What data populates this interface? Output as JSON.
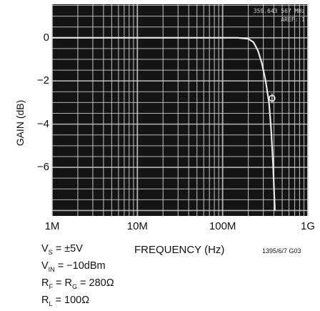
{
  "chart_data": {
    "type": "line",
    "xlabel": "FREQUENCY (Hz)",
    "ylabel": "GAIN (dB)",
    "x_scale": "log",
    "xlim": [
      1000000,
      1000000000
    ],
    "ylim": [
      -8.25,
      1.55
    ],
    "x_tick_labels": [
      "1M",
      "10M",
      "100M",
      "1G"
    ],
    "y_ticks": [
      0,
      -2,
      -4,
      -6
    ],
    "y_tick_labels": [
      "0",
      "−2",
      "−4",
      "−6"
    ],
    "grid": true,
    "background": "#141414",
    "trace_color": "#e8e8e8",
    "grid_color": "#cfcfcf",
    "series": [
      {
        "x": [
          1000000,
          10000000,
          50000000,
          100000000,
          150000000,
          200000000,
          230000000,
          260000000,
          290000000,
          320000000,
          350000000,
          370000000,
          390000000,
          410000000
        ],
        "y": [
          0,
          0,
          0,
          0,
          0,
          -0.05,
          -0.2,
          -0.6,
          -1.2,
          -2.0,
          -3.0,
          -4.2,
          -5.8,
          -8.0
        ]
      }
    ],
    "marker": {
      "x": 380000000,
      "y": -2.8
    },
    "screen_readout": [
      "359.643 567 MHz",
      "AREF: 1"
    ],
    "figure_id": "1395/6/7 G03",
    "conditions": [
      {
        "parts": [
          "V",
          "S",
          " = ±5V"
        ]
      },
      {
        "parts": [
          "V",
          "IN",
          " = −10dBm"
        ]
      },
      {
        "parts": [
          "R",
          "F",
          " = R",
          "G",
          " = 280Ω"
        ]
      },
      {
        "parts": [
          "R",
          "L",
          " = 100Ω"
        ]
      }
    ]
  }
}
